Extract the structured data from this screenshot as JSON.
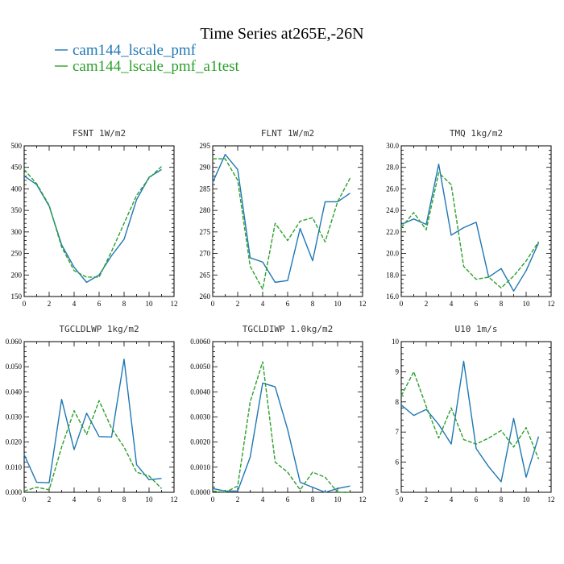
{
  "title": "Time Series at265E,-26N",
  "legend": [
    {
      "label": "cam144_lscale_pmf",
      "color": "#1f77b4"
    },
    {
      "label": "cam144_lscale_pmf_a1test",
      "color": "#2ca02c"
    }
  ],
  "chart_data": [
    {
      "type": "line",
      "title": "FSNT",
      "units": "1W/m2",
      "xlim": [
        0,
        12
      ],
      "xticks": [
        0,
        2,
        4,
        6,
        8,
        10,
        12
      ],
      "ylim": [
        150,
        500
      ],
      "yticks": [
        150,
        200,
        250,
        300,
        350,
        400,
        450,
        500
      ],
      "ytick_labels": [
        "150",
        "200",
        "250",
        "300",
        "350",
        "400",
        "450",
        "500"
      ],
      "x": [
        0,
        1,
        2,
        3,
        4,
        5,
        6,
        7,
        8,
        9,
        10,
        11
      ],
      "series": [
        {
          "name": "cam144_lscale_pmf",
          "values": [
            430,
            410,
            360,
            270,
            218,
            183,
            200,
            245,
            283,
            375,
            427,
            445
          ],
          "color": "#1f77b4",
          "dash": "solid"
        },
        {
          "name": "cam144_lscale_pmf_a1test",
          "values": [
            445,
            412,
            362,
            265,
            210,
            195,
            195,
            255,
            320,
            385,
            425,
            452
          ],
          "color": "#2ca02c",
          "dash": "dashed"
        }
      ]
    },
    {
      "type": "line",
      "title": "FLNT",
      "units": "1W/m2",
      "xlim": [
        0,
        12
      ],
      "xticks": [
        0,
        2,
        4,
        6,
        8,
        10,
        12
      ],
      "ylim": [
        260,
        295
      ],
      "yticks": [
        260,
        265,
        270,
        275,
        280,
        285,
        290,
        295
      ],
      "ytick_labels": [
        "260",
        "265",
        "270",
        "275",
        "280",
        "285",
        "290",
        "295"
      ],
      "x": [
        0,
        1,
        2,
        3,
        4,
        5,
        6,
        7,
        8,
        9,
        10,
        11
      ],
      "series": [
        {
          "name": "cam144_lscale_pmf",
          "values": [
            286.5,
            293,
            289.5,
            269,
            268,
            263.3,
            263.7,
            275.8,
            268.3,
            282,
            282,
            284
          ],
          "color": "#1f77b4",
          "dash": "solid"
        },
        {
          "name": "cam144_lscale_pmf_a1test",
          "values": [
            292,
            292,
            287,
            267,
            261.7,
            277,
            273,
            277.5,
            278.3,
            272.7,
            282,
            287.5
          ],
          "color": "#2ca02c",
          "dash": "dashed"
        }
      ]
    },
    {
      "type": "line",
      "title": "TMQ",
      "units": "1kg/m2",
      "xlim": [
        0,
        12
      ],
      "xticks": [
        0,
        2,
        4,
        6,
        8,
        10,
        12
      ],
      "ylim": [
        16,
        30
      ],
      "yticks": [
        16,
        18,
        20,
        22,
        24,
        26,
        28,
        30
      ],
      "ytick_labels": [
        "16.0",
        "18.0",
        "20.0",
        "22.0",
        "24.0",
        "26.0",
        "28.0",
        "30.0"
      ],
      "x": [
        0,
        1,
        2,
        3,
        4,
        5,
        6,
        7,
        8,
        9,
        10,
        11
      ],
      "series": [
        {
          "name": "cam144_lscale_pmf",
          "values": [
            22.7,
            23.2,
            22.7,
            28.3,
            21.7,
            22.4,
            22.9,
            17.8,
            18.6,
            16.5,
            18.4,
            21.0
          ],
          "color": "#1f77b4",
          "dash": "solid"
        },
        {
          "name": "cam144_lscale_pmf_a1test",
          "values": [
            22.4,
            23.8,
            22.2,
            27.5,
            26.4,
            18.8,
            17.6,
            17.8,
            16.8,
            17.9,
            19.3,
            21.1
          ],
          "color": "#2ca02c",
          "dash": "dashed"
        }
      ]
    },
    {
      "type": "line",
      "title": "TGCLDLWP",
      "units": "1kg/m2",
      "xlim": [
        0,
        12
      ],
      "xticks": [
        0,
        2,
        4,
        6,
        8,
        10,
        12
      ],
      "ylim": [
        0,
        0.06
      ],
      "yticks": [
        0,
        0.01,
        0.02,
        0.03,
        0.04,
        0.05,
        0.06
      ],
      "ytick_labels": [
        "0.000",
        "0.010",
        "0.020",
        "0.030",
        "0.040",
        "0.050",
        "0.060"
      ],
      "x": [
        0,
        1,
        2,
        3,
        4,
        5,
        6,
        7,
        8,
        9,
        10,
        11
      ],
      "series": [
        {
          "name": "cam144_lscale_pmf",
          "values": [
            0.015,
            0.004,
            0.0038,
            0.037,
            0.017,
            0.0315,
            0.0222,
            0.022,
            0.053,
            0.011,
            0.005,
            0.0055
          ],
          "color": "#1f77b4",
          "dash": "solid"
        },
        {
          "name": "cam144_lscale_pmf_a1test",
          "values": [
            0.0005,
            0.002,
            0.001,
            0.018,
            0.0325,
            0.023,
            0.0365,
            0.0255,
            0.018,
            0.008,
            0.0065,
            0.0015
          ],
          "color": "#2ca02c",
          "dash": "dashed"
        }
      ]
    },
    {
      "type": "line",
      "title": "TGCLDIWP",
      "units": "1.0kg/m2",
      "xlim": [
        0,
        12
      ],
      "xticks": [
        0,
        2,
        4,
        6,
        8,
        10,
        12
      ],
      "ylim": [
        0,
        0.006
      ],
      "yticks": [
        0,
        0.001,
        0.002,
        0.003,
        0.004,
        0.005,
        0.006
      ],
      "ytick_labels": [
        "0.0000",
        "0.0010",
        "0.0020",
        "0.0030",
        "0.0040",
        "0.0050",
        "0.0060"
      ],
      "x": [
        0,
        1,
        2,
        3,
        4,
        5,
        6,
        7,
        8,
        9,
        10,
        11
      ],
      "series": [
        {
          "name": "cam144_lscale_pmf",
          "values": [
            0.00015,
            5e-05,
            5e-05,
            0.0014,
            0.00435,
            0.0042,
            0.0025,
            0.0004,
            0.0002,
            0.0,
            0.00015,
            0.00025
          ],
          "color": "#1f77b4",
          "dash": "solid"
        },
        {
          "name": "cam144_lscale_pmf_a1test",
          "values": [
            5e-05,
            0.0,
            0.00025,
            0.0036,
            0.0052,
            0.0012,
            0.0008,
            0.0001,
            0.0008,
            0.0006,
            0.0,
            0.0
          ],
          "color": "#2ca02c",
          "dash": "dashed"
        }
      ]
    },
    {
      "type": "line",
      "title": "U10",
      "units": "1m/s",
      "xlim": [
        0,
        12
      ],
      "xticks": [
        0,
        2,
        4,
        6,
        8,
        10,
        12
      ],
      "ylim": [
        5,
        10
      ],
      "yticks": [
        5,
        6,
        7,
        8,
        9,
        10
      ],
      "ytick_labels": [
        "5",
        "6",
        "7",
        "8",
        "9",
        "10"
      ],
      "x": [
        0,
        1,
        2,
        3,
        4,
        5,
        6,
        7,
        8,
        9,
        10,
        11
      ],
      "series": [
        {
          "name": "cam144_lscale_pmf",
          "values": [
            7.9,
            7.55,
            7.75,
            7.25,
            6.6,
            9.35,
            6.45,
            5.85,
            5.35,
            7.45,
            5.5,
            6.85
          ],
          "color": "#1f77b4",
          "dash": "solid"
        },
        {
          "name": "cam144_lscale_pmf_a1test",
          "values": [
            8.2,
            9.0,
            7.85,
            6.8,
            7.8,
            6.75,
            6.6,
            6.8,
            7.05,
            6.5,
            7.15,
            6.1
          ],
          "color": "#2ca02c",
          "dash": "dashed"
        }
      ]
    }
  ]
}
